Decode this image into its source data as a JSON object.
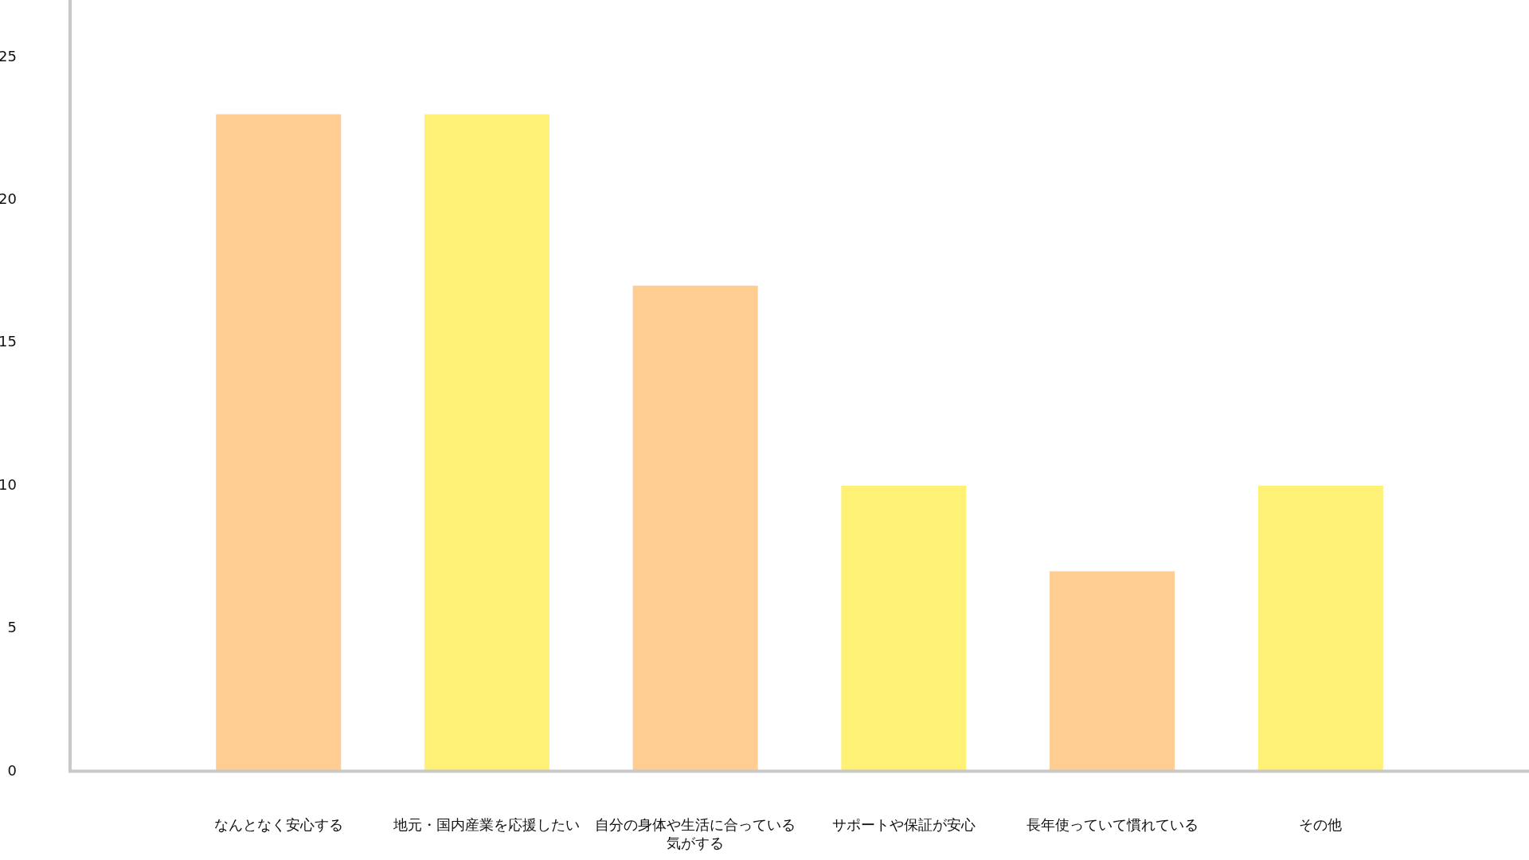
{
  "chart_data": {
    "type": "bar",
    "categories": [
      "なんとなく安心する",
      "地元・国内産業を応援したい",
      "自分の身体や生活に合っている気がする",
      "サポートや保証が安心",
      "長年使っていて慣れている",
      "その他"
    ],
    "values": [
      23,
      23,
      17,
      10,
      7,
      10
    ],
    "colors": [
      "#ffcc92",
      "#fff176",
      "#ffcc92",
      "#fff176",
      "#ffcc92",
      "#fff176"
    ],
    "ylim": [
      0,
      27
    ],
    "yticks": [
      0,
      5,
      10,
      15,
      20,
      25
    ]
  }
}
